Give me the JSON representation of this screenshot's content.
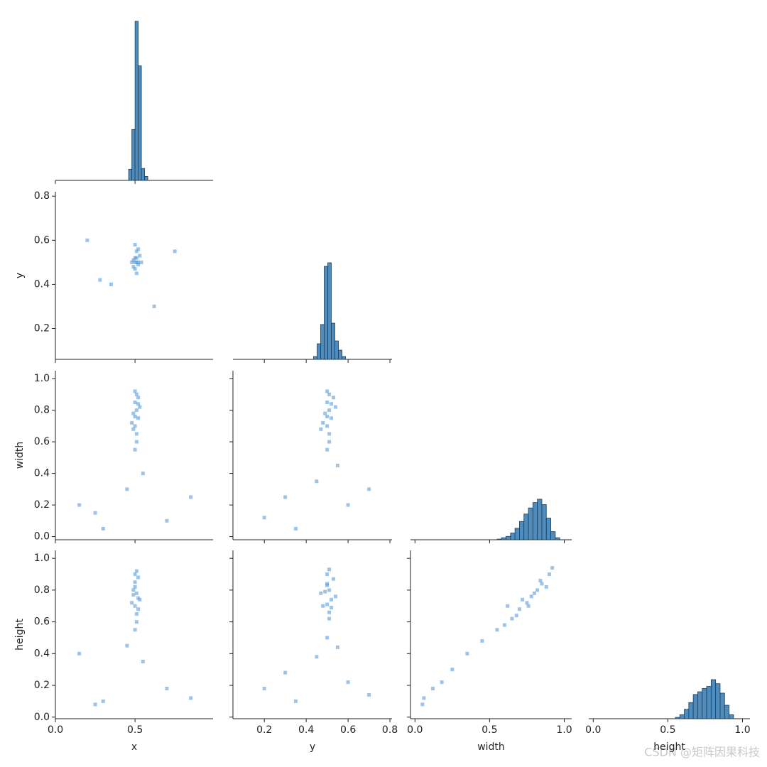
{
  "chart_data": [
    {
      "type": "histogram",
      "bins": [
        0.46,
        0.48,
        0.5,
        0.52,
        0.54,
        0.56,
        0.58
      ],
      "values": [
        70,
        320,
        1000,
        720,
        75,
        25
      ],
      "color": "#3b7fb6",
      "xlim": [
        0,
        0.99
      ],
      "ylim": [
        0,
        1000
      ],
      "xticks": [
        {
          "value": 0,
          "label": "0.0"
        },
        {
          "value": 0.5,
          "label": "0.5"
        }
      ],
      "xticklabels": false
    },
    {
      "type": "scatter",
      "x": [
        0.5,
        0.51,
        0.52,
        0.49,
        0.53,
        0.5,
        0.51,
        0.52,
        0.5,
        0.48,
        0.54,
        0.51,
        0.5,
        0.52,
        0.49,
        0.51,
        0.2,
        0.75,
        0.35,
        0.62,
        0.28
      ],
      "y": [
        0.5,
        0.52,
        0.49,
        0.51,
        0.53,
        0.47,
        0.55,
        0.5,
        0.58,
        0.5,
        0.5,
        0.45,
        0.52,
        0.56,
        0.48,
        0.5,
        0.6,
        0.55,
        0.4,
        0.3,
        0.42
      ],
      "color": "#4c93d6",
      "xlim": [
        0,
        0.99
      ],
      "ylim": [
        0.06,
        0.82
      ],
      "xticks": [
        {
          "value": 0,
          "label": "0.0"
        },
        {
          "value": 0.5,
          "label": "0.5"
        }
      ],
      "yticks": [
        0.2,
        0.4,
        0.6,
        0.8
      ],
      "xticklabels": false,
      "yticklabels": true,
      "ylabel": "y"
    },
    {
      "type": "histogram",
      "bins": [
        0.435,
        0.452,
        0.469,
        0.486,
        0.503,
        0.52,
        0.537,
        0.554,
        0.571,
        0.588
      ],
      "values": [
        17,
        93,
        208,
        555,
        576,
        216,
        110,
        55,
        17
      ],
      "color": "#3b7fb6",
      "xlim": [
        0.05,
        0.81
      ],
      "ylim": [
        0,
        1000
      ],
      "xticks": [
        0.2,
        0.4,
        0.6,
        0.8
      ],
      "xticklabels": false
    },
    {
      "type": "scatter",
      "x": [
        0.5,
        0.51,
        0.52,
        0.49,
        0.5,
        0.52,
        0.51,
        0.5,
        0.53,
        0.48,
        0.51,
        0.5,
        0.52,
        0.49,
        0.51,
        0.5,
        0.15,
        0.3,
        0.45,
        0.7,
        0.85,
        0.25,
        0.55
      ],
      "y": [
        0.85,
        0.8,
        0.75,
        0.78,
        0.7,
        0.88,
        0.65,
        0.92,
        0.82,
        0.72,
        0.6,
        0.76,
        0.84,
        0.68,
        0.9,
        0.55,
        0.2,
        0.05,
        0.3,
        0.1,
        0.25,
        0.15,
        0.4
      ],
      "color": "#4c93d6",
      "xlim": [
        0,
        0.99
      ],
      "ylim": [
        -0.02,
        1.05
      ],
      "xticks": [
        {
          "value": 0,
          "label": "0.0"
        },
        {
          "value": 0.5,
          "label": "0.5"
        }
      ],
      "yticks": [
        {
          "value": 0,
          "label": "0.0"
        },
        0.2,
        0.4,
        0.6,
        0.8,
        {
          "value": 1,
          "label": "1.0"
        }
      ],
      "xticklabels": false,
      "yticklabels": true,
      "ylabel": "width"
    },
    {
      "type": "scatter",
      "x": [
        0.5,
        0.51,
        0.52,
        0.49,
        0.5,
        0.53,
        0.51,
        0.5,
        0.54,
        0.48,
        0.51,
        0.5,
        0.52,
        0.47,
        0.51,
        0.5,
        0.2,
        0.35,
        0.45,
        0.6,
        0.7,
        0.3,
        0.55
      ],
      "y": [
        0.85,
        0.8,
        0.75,
        0.78,
        0.7,
        0.88,
        0.65,
        0.92,
        0.82,
        0.72,
        0.6,
        0.76,
        0.84,
        0.68,
        0.9,
        0.55,
        0.12,
        0.05,
        0.35,
        0.2,
        0.3,
        0.25,
        0.45
      ],
      "color": "#4c93d6",
      "xlim": [
        0.05,
        0.81
      ],
      "ylim": [
        -0.02,
        1.05
      ],
      "xticks": [
        0.2,
        0.4,
        0.6,
        0.8
      ],
      "yticks": [
        {
          "value": 0,
          "label": "0.0"
        },
        0.2,
        0.4,
        0.6,
        0.8,
        {
          "value": 1,
          "label": "1.0"
        }
      ],
      "xticklabels": false,
      "yticklabels": false
    },
    {
      "type": "histogram",
      "bins": [
        0.55,
        0.58,
        0.61,
        0.64,
        0.67,
        0.7,
        0.73,
        0.76,
        0.79,
        0.82,
        0.85,
        0.88,
        0.91,
        0.94,
        0.97
      ],
      "values": [
        4,
        12,
        20,
        40,
        68,
        108,
        152,
        188,
        220,
        240,
        208,
        128,
        48,
        12
      ],
      "color": "#3b7fb6",
      "xlim": [
        -0.03,
        1.05
      ],
      "ylim": [
        0,
        1000
      ],
      "xticks": [
        {
          "value": 0,
          "label": "0.0"
        },
        {
          "value": 0.5,
          "label": "0.5"
        },
        {
          "value": 1,
          "label": "1.0"
        }
      ],
      "xticklabels": false
    },
    {
      "type": "scatter",
      "x": [
        0.5,
        0.51,
        0.52,
        0.49,
        0.5,
        0.52,
        0.51,
        0.5,
        0.53,
        0.48,
        0.51,
        0.5,
        0.52,
        0.49,
        0.51,
        0.5,
        0.15,
        0.3,
        0.45,
        0.7,
        0.85,
        0.25,
        0.55
      ],
      "y": [
        0.82,
        0.78,
        0.75,
        0.8,
        0.7,
        0.88,
        0.65,
        0.9,
        0.74,
        0.72,
        0.6,
        0.85,
        0.68,
        0.77,
        0.92,
        0.55,
        0.4,
        0.1,
        0.45,
        0.18,
        0.12,
        0.08,
        0.35
      ],
      "color": "#4c93d6",
      "xlim": [
        0,
        0.99
      ],
      "ylim": [
        -0.01,
        1.05
      ],
      "xticks": [
        {
          "value": 0,
          "label": "0.0"
        },
        {
          "value": 0.5,
          "label": "0.5"
        }
      ],
      "yticks": [
        {
          "value": 0,
          "label": "0.0"
        },
        0.2,
        0.4,
        0.6,
        0.8,
        {
          "value": 1,
          "label": "1.0"
        }
      ],
      "xticklabels": true,
      "yticklabels": true,
      "xlabel": "x",
      "ylabel": "height"
    },
    {
      "type": "scatter",
      "x": [
        0.5,
        0.51,
        0.52,
        0.49,
        0.5,
        0.53,
        0.51,
        0.5,
        0.54,
        0.48,
        0.51,
        0.5,
        0.52,
        0.47,
        0.51,
        0.5,
        0.2,
        0.35,
        0.45,
        0.6,
        0.7,
        0.3,
        0.55
      ],
      "y": [
        0.83,
        0.8,
        0.74,
        0.79,
        0.71,
        0.87,
        0.66,
        0.9,
        0.76,
        0.7,
        0.62,
        0.84,
        0.69,
        0.78,
        0.93,
        0.5,
        0.18,
        0.1,
        0.38,
        0.22,
        0.14,
        0.28,
        0.44
      ],
      "color": "#4c93d6",
      "xlim": [
        0.05,
        0.81
      ],
      "ylim": [
        -0.01,
        1.05
      ],
      "xticks": [
        0.2,
        0.4,
        0.6,
        0.8
      ],
      "yticks": [
        {
          "value": 0,
          "label": "0.0"
        },
        0.2,
        0.4,
        0.6,
        0.8,
        {
          "value": 1,
          "label": "1.0"
        }
      ],
      "xticklabels": true,
      "yticklabels": false,
      "xlabel": "y"
    },
    {
      "type": "scatter",
      "x": [
        0.82,
        0.85,
        0.78,
        0.75,
        0.7,
        0.88,
        0.65,
        0.8,
        0.9,
        0.72,
        0.68,
        0.6,
        0.76,
        0.84,
        0.55,
        0.45,
        0.35,
        0.25,
        0.18,
        0.12,
        0.06,
        0.05,
        0.92,
        0.62
      ],
      "y": [
        0.8,
        0.84,
        0.76,
        0.72,
        0.68,
        0.82,
        0.62,
        0.78,
        0.9,
        0.74,
        0.64,
        0.58,
        0.7,
        0.86,
        0.55,
        0.48,
        0.4,
        0.3,
        0.22,
        0.18,
        0.12,
        0.08,
        0.94,
        0.7
      ],
      "color": "#4c93d6",
      "xlim": [
        -0.03,
        1.05
      ],
      "ylim": [
        -0.01,
        1.05
      ],
      "xticks": [
        {
          "value": 0,
          "label": "0.0"
        },
        {
          "value": 0.5,
          "label": "0.5"
        },
        {
          "value": 1,
          "label": "1.0"
        }
      ],
      "yticks": [
        {
          "value": 0,
          "label": "0.0"
        },
        0.2,
        0.4,
        0.6,
        0.8,
        {
          "value": 1,
          "label": "1.0"
        }
      ],
      "xticklabels": true,
      "yticklabels": false,
      "xlabel": "width"
    },
    {
      "type": "histogram",
      "bins": [
        0.55,
        0.58,
        0.61,
        0.64,
        0.67,
        0.7,
        0.73,
        0.76,
        0.79,
        0.82,
        0.85,
        0.88,
        0.91,
        0.94
      ],
      "values": [
        8,
        24,
        56,
        96,
        144,
        160,
        180,
        192,
        232,
        208,
        152,
        80,
        24
      ],
      "color": "#3b7fb6",
      "xlim": [
        -0.03,
        1.05
      ],
      "ylim": [
        0,
        1000
      ],
      "xticks": [
        {
          "value": 0,
          "label": "0.0"
        },
        {
          "value": 0.5,
          "label": "0.5"
        },
        {
          "value": 1,
          "label": "1.0"
        }
      ],
      "xticklabels": true,
      "xlabel": "height"
    }
  ],
  "watermark": "CSDN @矩阵因果科技"
}
